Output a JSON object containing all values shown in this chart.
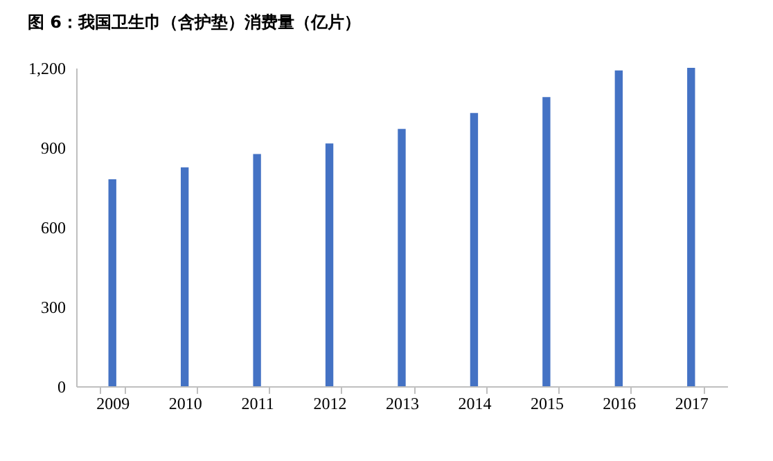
{
  "chart_data": {
    "type": "bar",
    "title": "图 6：我国卫生巾（含护垫）消费量（亿片）",
    "categories": [
      "2009",
      "2010",
      "2011",
      "2012",
      "2013",
      "2014",
      "2015",
      "2016",
      "2017"
    ],
    "values": [
      780,
      825,
      875,
      915,
      970,
      1030,
      1090,
      1190,
      1200
    ],
    "color": "#4472c4",
    "ylim": [
      0,
      1200
    ],
    "yticks": [
      0,
      300,
      600,
      900,
      {
        "value": 1200,
        "label": "1,200"
      }
    ],
    "grid": false
  }
}
